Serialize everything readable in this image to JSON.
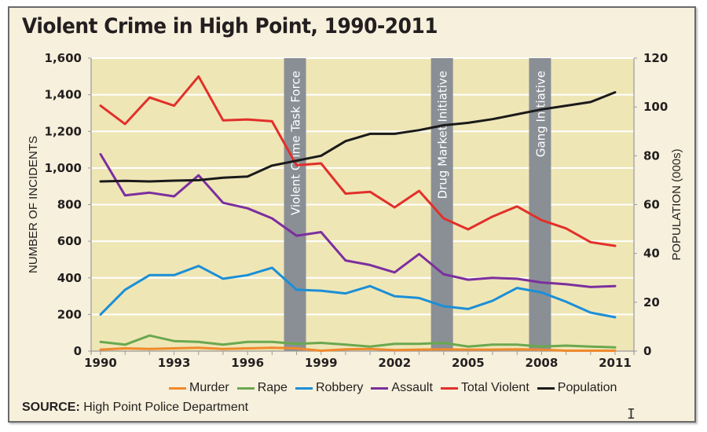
{
  "chart_data": {
    "type": "line",
    "title": "Violent Crime in High Point, 1990-2011",
    "xlabel": "",
    "ylabel": "NUMBER OF INCIDENTS",
    "y2label": "POPULATION (000s)",
    "ylim": [
      0,
      1600
    ],
    "y2lim": [
      0,
      120
    ],
    "xlim": [
      1990,
      2011
    ],
    "x": [
      1990,
      1991,
      1992,
      1993,
      1994,
      1995,
      1996,
      1997,
      1998,
      1999,
      2000,
      2001,
      2002,
      2003,
      2004,
      2005,
      2006,
      2007,
      2008,
      2009,
      2010,
      2011
    ],
    "x_tick_labels": [
      "1990",
      "1993",
      "1996",
      "1999",
      "2002",
      "2005",
      "2008",
      "2011"
    ],
    "y_tick_labels": [
      "0",
      "200",
      "400",
      "600",
      "800",
      "1,000",
      "1,200",
      "1,400",
      "1,600"
    ],
    "y2_tick_labels": [
      "0",
      "20",
      "40",
      "60",
      "80",
      "100",
      "120"
    ],
    "grid": true,
    "legend_position": "bottom",
    "series": [
      {
        "name": "Murder",
        "axis": "left",
        "color": "#f08a2c",
        "values": [
          8,
          15,
          12,
          15,
          18,
          12,
          15,
          18,
          15,
          2,
          10,
          12,
          5,
          8,
          10,
          8,
          8,
          10,
          8,
          2,
          2,
          2
        ]
      },
      {
        "name": "Rape",
        "axis": "left",
        "color": "#6aa84f",
        "values": [
          50,
          35,
          85,
          55,
          50,
          35,
          50,
          50,
          40,
          45,
          35,
          25,
          40,
          40,
          45,
          25,
          35,
          35,
          25,
          30,
          25,
          20
        ]
      },
      {
        "name": "Robbery",
        "axis": "left",
        "color": "#1b8fd6",
        "values": [
          200,
          335,
          415,
          415,
          465,
          395,
          415,
          455,
          335,
          330,
          315,
          355,
          300,
          290,
          245,
          230,
          275,
          345,
          320,
          270,
          210,
          185
        ]
      },
      {
        "name": "Assault",
        "axis": "left",
        "color": "#7b2f9e",
        "values": [
          1075,
          850,
          865,
          845,
          960,
          810,
          780,
          725,
          630,
          650,
          495,
          470,
          430,
          530,
          420,
          390,
          400,
          395,
          375,
          365,
          350,
          355
        ]
      },
      {
        "name": "Total Violent",
        "axis": "left",
        "color": "#e1302a",
        "values": [
          1340,
          1240,
          1385,
          1340,
          1500,
          1260,
          1265,
          1255,
          1015,
          1025,
          860,
          870,
          785,
          875,
          725,
          665,
          735,
          790,
          715,
          670,
          595,
          575
        ]
      },
      {
        "name": "Population",
        "axis": "right",
        "color": "#1a1a1a",
        "values": [
          69.5,
          69.7,
          69.5,
          69.8,
          70,
          71,
          71.5,
          76,
          78,
          80,
          86,
          89,
          89,
          90.5,
          92.5,
          93.5,
          95,
          97,
          99,
          100.5,
          102,
          106
        ]
      }
    ],
    "annotations": [
      {
        "label": "Violent Crime Task Force",
        "year": 1998
      },
      {
        "label": "Drug Market Initiative",
        "year": 2004
      },
      {
        "label": "Gang Initiative",
        "year": 2008
      }
    ]
  },
  "source": {
    "prefix": "SOURCE:",
    "text": " High Point Police Department"
  },
  "colors": {
    "frame_bg": "#f6f0dc",
    "plot_bg": "#efe6b6",
    "band": "#8a8f96",
    "grid": "#ffffff"
  }
}
